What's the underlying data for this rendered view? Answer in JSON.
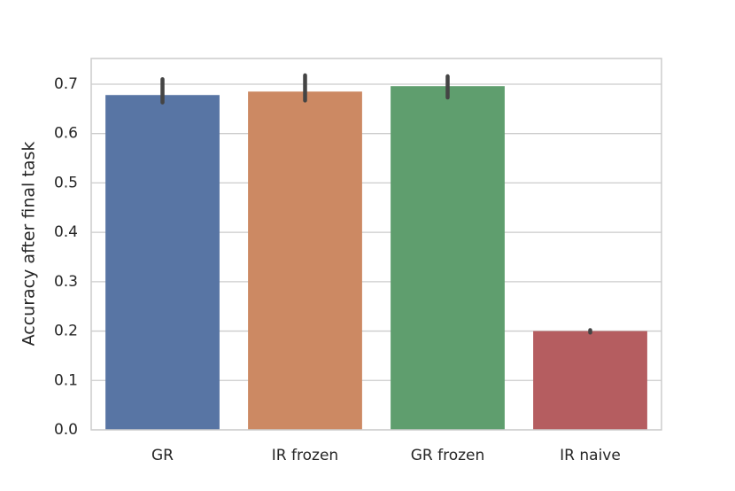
{
  "chart_data": {
    "type": "bar",
    "ylabel": "Accuracy after final task",
    "categories": [
      "GR",
      "IR frozen",
      "GR frozen",
      "IR naive"
    ],
    "values": [
      0.678,
      0.685,
      0.696,
      0.2
    ],
    "ci_low": [
      0.663,
      0.667,
      0.673,
      0.197
    ],
    "ci_high": [
      0.71,
      0.718,
      0.716,
      0.202
    ],
    "colors": [
      "#5875a4",
      "#cc8963",
      "#5f9e6e",
      "#b55d60"
    ],
    "error_color": "#444444",
    "ylim": [
      0,
      0.752
    ],
    "yticks": [
      {
        "value": 0,
        "label": "0.0"
      },
      0.1,
      0.2,
      0.3,
      0.4,
      0.5,
      0.6,
      0.7
    ],
    "grid": true
  }
}
